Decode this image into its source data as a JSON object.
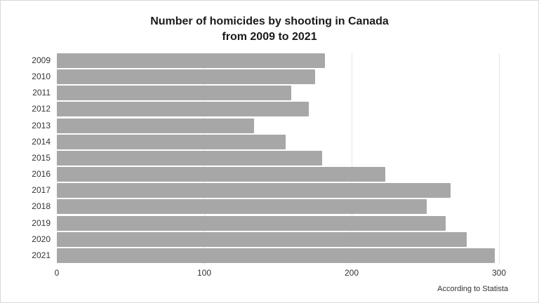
{
  "chart_data": {
    "type": "bar",
    "orientation": "horizontal",
    "title": "Number of  homicides by shooting  in Canada from 2009 to 2021",
    "title_lines": [
      "Number of  homicides by shooting  in Canada",
      "from 2009 to 2021"
    ],
    "categories": [
      "2009",
      "2010",
      "2011",
      "2012",
      "2013",
      "2014",
      "2015",
      "2016",
      "2017",
      "2018",
      "2019",
      "2020",
      "2021"
    ],
    "values": [
      182,
      175,
      159,
      171,
      134,
      155,
      180,
      223,
      267,
      251,
      264,
      278,
      297
    ],
    "xlabel": "",
    "ylabel": "",
    "xlim": [
      0,
      300
    ],
    "xticks": [
      "0",
      "100",
      "200",
      "300"
    ],
    "grid": "vertical",
    "legend": null,
    "bar_color": "#a7a7a7",
    "annotation": "According to Statista"
  },
  "title": {
    "line1": "Number of  homicides by shooting  in Canada",
    "line2": "from 2009 to 2021"
  },
  "source": "According to Statista"
}
